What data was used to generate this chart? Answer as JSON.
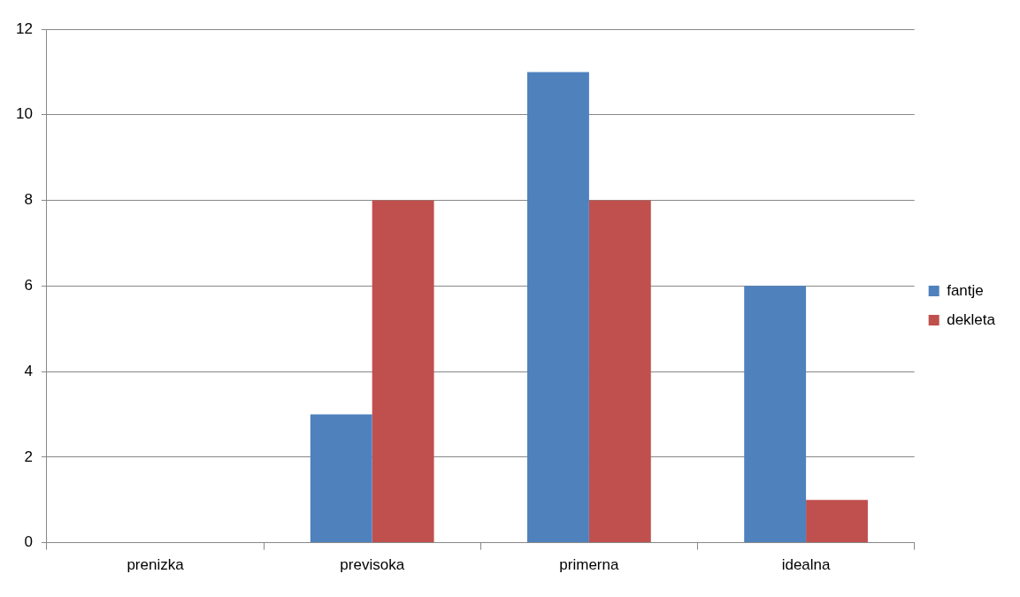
{
  "chart_data": {
    "type": "bar",
    "categories": [
      "prenizka",
      "previsoka",
      "primerna",
      "idealna"
    ],
    "series": [
      {
        "name": "fantje",
        "color": "#4f81bd",
        "values": [
          0,
          3,
          11,
          6
        ]
      },
      {
        "name": "dekleta",
        "color": "#c0504d",
        "values": [
          0,
          8,
          8,
          1
        ]
      }
    ],
    "ylim": [
      0,
      12
    ],
    "yticks": [
      0,
      2,
      4,
      6,
      8,
      10,
      12
    ],
    "grid": "y",
    "legend": "right"
  }
}
